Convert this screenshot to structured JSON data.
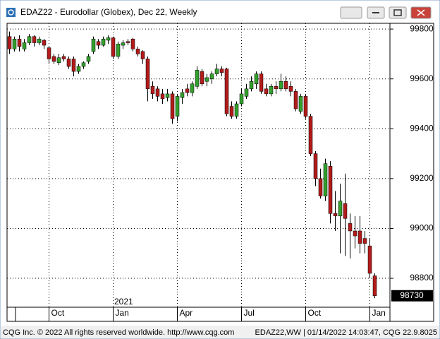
{
  "window": {
    "title": "EDAZ22 - Eurodollar (Globex), Dec 22, Weekly"
  },
  "chart_data": {
    "type": "candlestick",
    "categories": [
      null,
      null,
      null,
      null,
      null,
      null,
      null,
      null,
      "Oct",
      null,
      null,
      null,
      null,
      null,
      null,
      null,
      null,
      null,
      null,
      null,
      null,
      "Jan",
      null,
      null,
      null,
      null,
      null,
      null,
      null,
      null,
      null,
      null,
      null,
      null,
      "Apr",
      null,
      null,
      null,
      null,
      null,
      null,
      null,
      null,
      null,
      null,
      null,
      null,
      "Jul",
      null,
      null,
      null,
      null,
      null,
      null,
      null,
      null,
      null,
      null,
      null,
      null,
      "Oct",
      null,
      null,
      null,
      null,
      null,
      null,
      null,
      null,
      null,
      null,
      null,
      null,
      "Jan",
      null
    ],
    "year_label": "2021",
    "open": [
      99770,
      99720,
      99760,
      99720,
      99745,
      99770,
      99745,
      99755,
      99725,
      99690,
      99665,
      99690,
      99680,
      99680,
      99630,
      99650,
      99670,
      99710,
      99750,
      99735,
      99755,
      99765,
      99690,
      99735,
      99750,
      99760,
      99720,
      99710,
      99680,
      99570,
      99560,
      99540,
      99525,
      99540,
      99450,
      99525,
      99560,
      99545,
      99570,
      99630,
      99590,
      99600,
      99620,
      99640,
      99640,
      99490,
      99450,
      99500,
      99530,
      99560,
      99580,
      99620,
      99560,
      99540,
      99570,
      99560,
      99590,
      99570,
      99550,
      99470,
      99530,
      99450,
      99300,
      99200,
      99130,
      99250,
      99060,
      99050,
      99100,
      99020,
      98990,
      98990,
      98960,
      98930,
      98810
    ],
    "high": [
      99790,
      99770,
      99775,
      99760,
      99780,
      99775,
      99770,
      99760,
      99730,
      99700,
      99700,
      99700,
      99690,
      99690,
      99660,
      99670,
      99700,
      99770,
      99760,
      99770,
      99775,
      99770,
      99750,
      99755,
      99760,
      99765,
      99730,
      99715,
      99690,
      99590,
      99570,
      99560,
      99560,
      99550,
      99540,
      99560,
      99580,
      99590,
      99650,
      99640,
      99620,
      99630,
      99660,
      99650,
      99645,
      99510,
      99510,
      99560,
      99580,
      99610,
      99630,
      99630,
      99580,
      99580,
      99590,
      99620,
      99610,
      99590,
      99560,
      99540,
      99540,
      99460,
      99310,
      99240,
      99280,
      99270,
      99150,
      99180,
      99220,
      99060,
      99050,
      99050,
      98990,
      98960,
      98820
    ],
    "low": [
      99700,
      99710,
      99710,
      99710,
      99735,
      99730,
      99735,
      99720,
      99660,
      99660,
      99655,
      99670,
      99640,
      99610,
      99620,
      99640,
      99660,
      99700,
      99720,
      99730,
      99740,
      99680,
      99680,
      99720,
      99735,
      99710,
      99690,
      99660,
      99510,
      99520,
      99510,
      99500,
      99510,
      99420,
      99430,
      99500,
      99530,
      99530,
      99560,
      99570,
      99570,
      99580,
      99610,
      99610,
      99450,
      99440,
      99440,
      99490,
      99520,
      99550,
      99560,
      99540,
      99530,
      99530,
      99540,
      99550,
      99550,
      99530,
      99470,
      99460,
      99440,
      99290,
      99170,
      99120,
      99110,
      99020,
      98990,
      98900,
      98890,
      98880,
      98920,
      98900,
      98900,
      98800,
      98720
    ],
    "close": [
      99720,
      99760,
      99730,
      99745,
      99770,
      99745,
      99760,
      99735,
      99680,
      99670,
      99685,
      99680,
      99650,
      99630,
      99650,
      99665,
      99690,
      99760,
      99735,
      99760,
      99765,
      99690,
      99740,
      99745,
      99745,
      99720,
      99700,
      99680,
      99560,
      99540,
      99530,
      99520,
      99540,
      99440,
      99530,
      99545,
      99545,
      99580,
      99635,
      99580,
      99605,
      99620,
      99640,
      99625,
      99460,
      99450,
      99500,
      99540,
      99560,
      99590,
      99620,
      99550,
      99540,
      99570,
      99560,
      99590,
      99560,
      99550,
      99480,
      99530,
      99450,
      99300,
      99200,
      99130,
      99260,
      99060,
      99050,
      99110,
      99040,
      98990,
      98970,
      98940,
      98940,
      98820,
      98730
    ],
    "up_color": "#33a02c",
    "down_color": "#b31b1b",
    "ylim": [
      98684,
      99823
    ],
    "yticks": [
      98800,
      99000,
      99200,
      99400,
      99600,
      99800
    ],
    "grid": true,
    "last_price": 98730
  },
  "footer": {
    "left": "CQG Inc. © 2022 All rights reserved worldwide. http://www.cqg.com",
    "right": "EDAZ22,WW | 01/14/2022 14:03:47, CQG 22.9.8025"
  }
}
